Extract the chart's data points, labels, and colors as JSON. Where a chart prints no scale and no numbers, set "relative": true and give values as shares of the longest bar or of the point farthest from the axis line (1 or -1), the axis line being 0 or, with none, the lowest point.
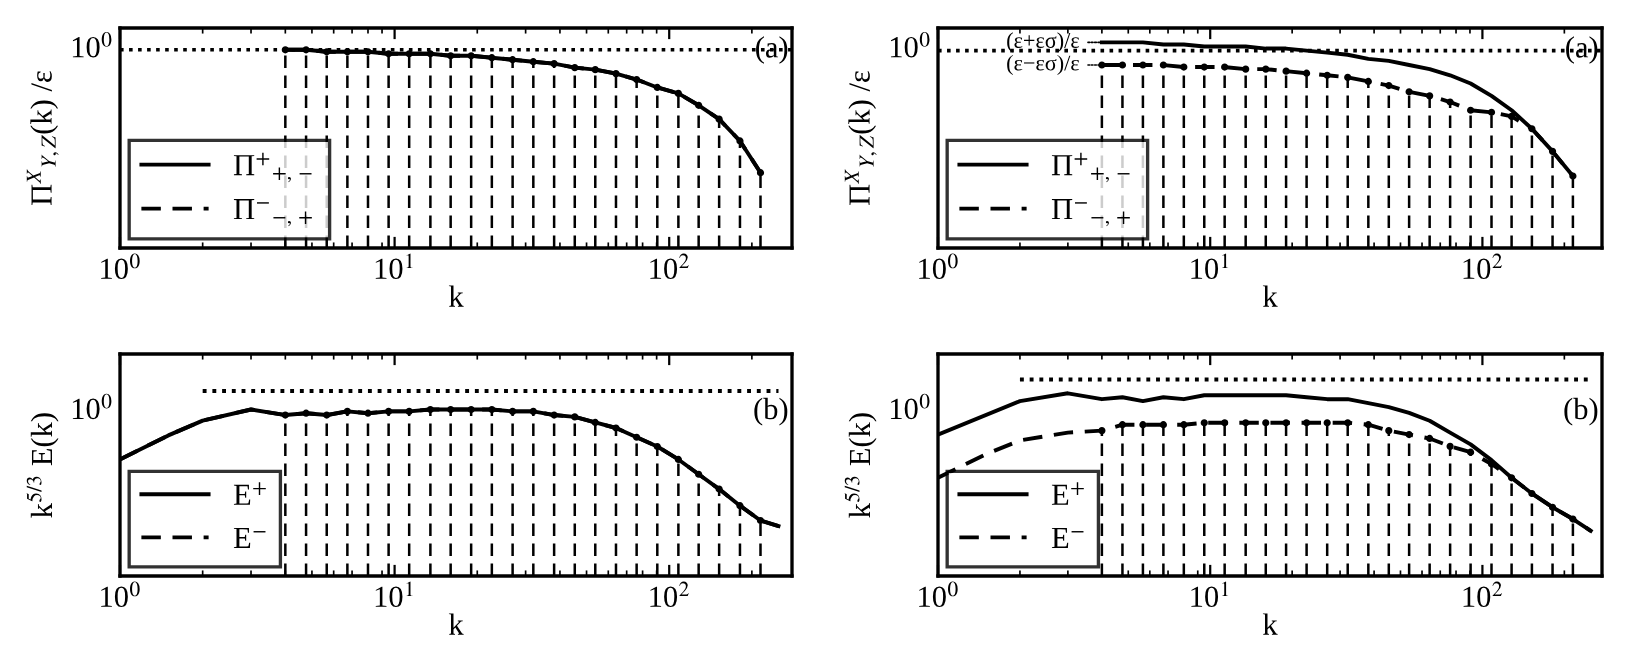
{
  "chart_data": [
    {
      "type": "line",
      "relative": true,
      "xlabel": "k",
      "ylabel": "Π$^{X}$$_{Y,Z}$(k) /ε",
      "log": "x",
      "xlim": [
        1,
        280
      ],
      "xticks": [
        {
          "value": 1,
          "label": "10$^{0}$"
        },
        {
          "value": 10,
          "label": "10$^{1}$"
        },
        {
          "value": 100,
          "label": "10$^{2}$"
        }
      ],
      "legend": "bottom left",
      "grid": false,
      "marker": "none",
      "annotations": [
        "(a)",
        "10$^{0}$"
      ],
      "ref_lines": [
        {
          "axis": "y",
          "value": 1,
          "color": "#000000",
          "line_style": "dotted"
        }
      ],
      "series": [
        {
          "name": "Π$^{+}$$_{+,−}$",
          "color": "#000000",
          "line_style": "solid",
          "x": [
            4,
            4.76,
            5.66,
            6.73,
            8,
            9.51,
            11.3,
            13.5,
            16,
            19,
            22.6,
            26.9,
            32,
            38.1,
            45.3,
            53.8,
            64,
            76.1,
            90.5,
            108,
            128,
            152,
            181,
            215
          ],
          "values": [
            1.0,
            1.0,
            0.99,
            0.99,
            0.99,
            0.98,
            0.98,
            0.98,
            0.97,
            0.97,
            0.96,
            0.95,
            0.94,
            0.93,
            0.91,
            0.9,
            0.88,
            0.85,
            0.81,
            0.78,
            0.72,
            0.65,
            0.54,
            0.38
          ]
        },
        {
          "name": "Π$^{−}$$_{−,+}$",
          "color": "#000000",
          "line_style": "dashed",
          "x": [
            4,
            4.76,
            5.66,
            6.73,
            8,
            9.51,
            11.3,
            13.5,
            16,
            19,
            22.6,
            26.9,
            32,
            38.1,
            45.3,
            53.8,
            64,
            76.1,
            90.5,
            108,
            128,
            152,
            181,
            215
          ],
          "values": [
            1.0,
            1.0,
            0.99,
            0.99,
            0.99,
            0.98,
            0.98,
            0.98,
            0.97,
            0.97,
            0.96,
            0.95,
            0.94,
            0.93,
            0.91,
            0.9,
            0.88,
            0.85,
            0.81,
            0.78,
            0.72,
            0.65,
            0.54,
            0.38
          ]
        },
        {
          "type": "lollipop",
          "color": "#000000",
          "line_style": "dashed",
          "x": [
            4,
            4.76,
            5.66,
            6.73,
            8,
            9.51,
            11.3,
            13.5,
            16,
            19,
            22.6,
            26.9,
            32,
            38.1,
            45.3,
            53.8,
            64,
            76.1,
            90.5,
            108,
            128,
            152,
            181,
            215
          ],
          "values": [
            1.0,
            1.0,
            0.99,
            0.99,
            0.99,
            0.98,
            0.98,
            0.98,
            0.97,
            0.97,
            0.96,
            0.95,
            0.94,
            0.93,
            0.91,
            0.9,
            0.88,
            0.85,
            0.81,
            0.78,
            0.72,
            0.65,
            0.54,
            0.38
          ]
        }
      ]
    },
    {
      "type": "line",
      "relative": true,
      "xlabel": "k",
      "ylabel": "Π$^{X}$$_{Y,Z}$(k) /ε",
      "log": "x",
      "xlim": [
        1,
        275
      ],
      "xticks": [
        {
          "value": 1,
          "label": "10$^{0}$"
        },
        {
          "value": 10,
          "label": "10$^{1}$"
        },
        {
          "value": 100,
          "label": "10$^{2}$"
        }
      ],
      "legend": "bottom left",
      "grid": false,
      "marker": "none",
      "annotations": [
        "(a)",
        "10$^{0}$",
        {
          "text": "(ε+εσ)/ε",
          "x": 4,
          "y": 1.0
        },
        {
          "text": "(ε−εσ)/ε",
          "x": 4,
          "y": 0.89
        }
      ],
      "ref_lines": [
        {
          "axis": "y",
          "value": 0.96,
          "color": "#000000",
          "line_style": "dotted"
        }
      ],
      "series": [
        {
          "name": "Π$^{+}$$_{+,−}$",
          "color": "#000000",
          "line_style": "solid",
          "x": [
            4,
            4.76,
            5.66,
            6.73,
            8,
            9.51,
            11.3,
            13.5,
            16,
            19,
            22.6,
            26.9,
            32,
            38.1,
            45.3,
            53.8,
            64,
            76.1,
            90.5,
            108,
            128,
            152,
            181,
            215
          ],
          "values": [
            1.0,
            1.0,
            1.0,
            0.99,
            0.99,
            0.98,
            0.98,
            0.98,
            0.97,
            0.97,
            0.96,
            0.95,
            0.94,
            0.92,
            0.91,
            0.89,
            0.87,
            0.84,
            0.8,
            0.74,
            0.67,
            0.58,
            0.47,
            0.35
          ]
        },
        {
          "name": "Π$^{−}$$_{−,+}$",
          "color": "#000000",
          "line_style": "dashed",
          "x": [
            4,
            4.76,
            5.66,
            6.73,
            8,
            9.51,
            11.3,
            13.5,
            16,
            19,
            22.6,
            26.9,
            32,
            38.1,
            45.3,
            53.8,
            64,
            76.1,
            90.5,
            108,
            128,
            152,
            181,
            215
          ],
          "values": [
            0.89,
            0.89,
            0.89,
            0.89,
            0.88,
            0.88,
            0.88,
            0.87,
            0.87,
            0.86,
            0.85,
            0.84,
            0.83,
            0.81,
            0.79,
            0.76,
            0.74,
            0.71,
            0.67,
            0.66,
            0.64,
            0.58,
            0.47,
            0.35
          ]
        },
        {
          "type": "lollipop",
          "color": "#000000",
          "line_style": "dashed",
          "x": [
            4,
            4.76,
            5.66,
            6.73,
            8,
            9.51,
            11.3,
            13.5,
            16,
            19,
            22.6,
            26.9,
            32,
            38.1,
            45.3,
            53.8,
            64,
            76.1,
            90.5,
            108,
            128,
            152,
            181,
            215
          ],
          "values": [
            0.89,
            0.89,
            0.89,
            0.89,
            0.88,
            0.88,
            0.88,
            0.87,
            0.87,
            0.86,
            0.85,
            0.84,
            0.83,
            0.81,
            0.79,
            0.76,
            0.74,
            0.71,
            0.67,
            0.66,
            0.64,
            0.58,
            0.47,
            0.35
          ]
        }
      ]
    },
    {
      "type": "line",
      "relative": true,
      "xlabel": "k",
      "ylabel": "k$^{5/3}$ E(k)",
      "log": "x",
      "xlim": [
        1,
        280
      ],
      "xticks": [
        {
          "value": 1,
          "label": "10$^{0}$"
        },
        {
          "value": 10,
          "label": "10$^{1}$"
        },
        {
          "value": 100,
          "label": "10$^{2}$"
        }
      ],
      "legend": "bottom left",
      "grid": false,
      "marker": "none",
      "annotations": [
        "(b)",
        "10$^{0}$"
      ],
      "series": [
        {
          "name": "E$^{+}$",
          "color": "#000000",
          "line_style": "solid",
          "x": [
            1,
            1.5,
            2,
            3,
            4,
            4.76,
            5.66,
            6.73,
            8,
            9.51,
            11.3,
            13.5,
            16,
            19,
            22.6,
            26.9,
            32,
            38.1,
            45.3,
            53.8,
            64,
            76.1,
            90.5,
            108,
            128,
            152,
            181,
            215,
            250
          ],
          "values": [
            0.63,
            0.76,
            0.84,
            0.9,
            0.87,
            0.88,
            0.87,
            0.89,
            0.88,
            0.89,
            0.89,
            0.9,
            0.9,
            0.9,
            0.9,
            0.89,
            0.89,
            0.87,
            0.86,
            0.83,
            0.8,
            0.75,
            0.7,
            0.63,
            0.55,
            0.47,
            0.38,
            0.3,
            0.27
          ]
        },
        {
          "name": "E$^{−}$",
          "color": "#000000",
          "line_style": "dashed",
          "x": [
            1,
            1.5,
            2,
            3,
            4,
            4.76,
            5.66,
            6.73,
            8,
            9.51,
            11.3,
            13.5,
            16,
            19,
            22.6,
            26.9,
            32,
            38.1,
            45.3,
            53.8,
            64,
            76.1,
            90.5,
            108,
            128,
            152,
            181,
            215,
            250
          ],
          "values": [
            0.63,
            0.76,
            0.84,
            0.9,
            0.87,
            0.88,
            0.87,
            0.89,
            0.88,
            0.89,
            0.89,
            0.9,
            0.9,
            0.9,
            0.9,
            0.89,
            0.89,
            0.87,
            0.86,
            0.83,
            0.8,
            0.75,
            0.7,
            0.63,
            0.55,
            0.47,
            0.38,
            0.3,
            0.27
          ]
        },
        {
          "type": "lollipop",
          "color": "#000000",
          "line_style": "dashed",
          "x": [
            4,
            4.76,
            5.66,
            6.73,
            8,
            9.51,
            11.3,
            13.5,
            16,
            19,
            22.6,
            26.9,
            32,
            38.1,
            45.3,
            53.8,
            64,
            76.1,
            90.5,
            108,
            128,
            152,
            181,
            215
          ],
          "values": [
            0.87,
            0.88,
            0.87,
            0.89,
            0.88,
            0.89,
            0.89,
            0.9,
            0.9,
            0.9,
            0.9,
            0.89,
            0.89,
            0.87,
            0.86,
            0.83,
            0.8,
            0.75,
            0.7,
            0.63,
            0.55,
            0.47,
            0.38,
            0.3
          ]
        },
        {
          "color": "#000000",
          "line_style": "dotted",
          "x": [
            2,
            250
          ],
          "values": [
            1,
            1
          ]
        }
      ]
    },
    {
      "type": "line",
      "relative": true,
      "xlabel": "k",
      "ylabel": "k$^{5/3}$ E(k)",
      "log": "x",
      "xlim": [
        1,
        275
      ],
      "xticks": [
        {
          "value": 1,
          "label": "10$^{0}$"
        },
        {
          "value": 10,
          "label": "10$^{1}$"
        },
        {
          "value": 100,
          "label": "10$^{2}$"
        }
      ],
      "legend": "bottom left",
      "grid": false,
      "marker": "none",
      "annotations": [
        "(b)",
        "10$^{0}$"
      ],
      "series": [
        {
          "name": "E$^{+}$",
          "color": "#000000",
          "line_style": "solid",
          "x": [
            1,
            2,
            3,
            4,
            4.76,
            5.66,
            6.73,
            8,
            9.51,
            11.3,
            13.5,
            16,
            19,
            22.6,
            26.9,
            32,
            38.1,
            45.3,
            53.8,
            64,
            76.1,
            90.5,
            108,
            128,
            152,
            181,
            215,
            250
          ],
          "values": [
            0.72,
            0.89,
            0.93,
            0.9,
            0.91,
            0.89,
            0.91,
            0.9,
            0.92,
            0.92,
            0.92,
            0.92,
            0.92,
            0.91,
            0.9,
            0.9,
            0.88,
            0.86,
            0.83,
            0.79,
            0.73,
            0.67,
            0.59,
            0.5,
            0.42,
            0.35,
            0.29,
            0.23
          ]
        },
        {
          "name": "E$^{−}$",
          "color": "#000000",
          "line_style": "dashed",
          "x": [
            1,
            1.5,
            2,
            3,
            4,
            4.76,
            5.66,
            6.73,
            8,
            9.51,
            11.3,
            13.5,
            16,
            19,
            22.6,
            26.9,
            32,
            38.1,
            45.3,
            53.8,
            64,
            76.1,
            90.5,
            108,
            128,
            152,
            181,
            215,
            250
          ],
          "values": [
            0.5,
            0.62,
            0.69,
            0.73,
            0.74,
            0.77,
            0.77,
            0.77,
            0.77,
            0.78,
            0.78,
            0.78,
            0.78,
            0.78,
            0.78,
            0.78,
            0.78,
            0.77,
            0.74,
            0.72,
            0.7,
            0.66,
            0.63,
            0.57,
            0.5,
            0.42,
            0.35,
            0.29,
            0.23
          ]
        },
        {
          "type": "lollipop",
          "color": "#000000",
          "line_style": "dashed",
          "x": [
            4,
            4.76,
            5.66,
            6.73,
            8,
            9.51,
            11.3,
            13.5,
            16,
            19,
            22.6,
            26.9,
            32,
            38.1,
            45.3,
            53.8,
            64,
            76.1,
            90.5,
            108,
            128,
            152,
            181,
            215
          ],
          "values": [
            0.74,
            0.77,
            0.77,
            0.77,
            0.77,
            0.78,
            0.78,
            0.78,
            0.78,
            0.78,
            0.78,
            0.78,
            0.78,
            0.77,
            0.74,
            0.72,
            0.7,
            0.66,
            0.63,
            0.57,
            0.5,
            0.42,
            0.35,
            0.29
          ]
        },
        {
          "color": "#000000",
          "line_style": "dotted",
          "x": [
            2,
            250
          ],
          "values": [
            1,
            1
          ]
        }
      ]
    }
  ]
}
